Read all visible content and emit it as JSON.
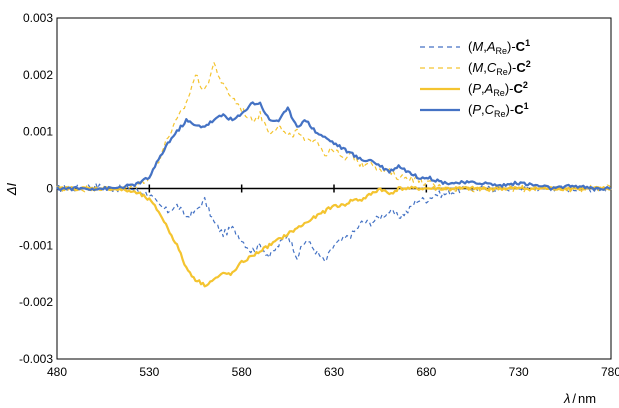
{
  "chart_data": {
    "type": "line",
    "xlabel": {
      "symbol": "λ",
      "unit": "nm"
    },
    "ylabel": {
      "symbol": "ΔI"
    },
    "xlim": [
      480,
      780
    ],
    "ylim": [
      -0.003,
      0.003
    ],
    "x_ticks": [
      "480",
      "530",
      "580",
      "630",
      "680",
      "730",
      "780"
    ],
    "y_ticks": [
      "0.003",
      "0.002",
      "0.001",
      "0",
      "-0.001",
      "-0.002",
      "-0.003"
    ],
    "zero_axis_ticks": [
      530,
      580,
      630,
      680
    ],
    "grid": false,
    "legend_position": "top-right",
    "series": [
      {
        "name": "(M,ARe)-C1",
        "label": {
          "open": "(",
          "italic1": "M",
          "comma": ",",
          "italic2": "A",
          "sub": "Re",
          "close": ")-",
          "bold": "C",
          "sup": "1"
        },
        "color": "#4472C4",
        "dash": "dashed",
        "width": 1.2,
        "x": [
          480,
          490,
          500,
          510,
          520,
          525,
          530,
          535,
          540,
          545,
          550,
          555,
          560,
          565,
          570,
          575,
          580,
          585,
          590,
          595,
          600,
          605,
          610,
          615,
          620,
          625,
          630,
          635,
          640,
          645,
          650,
          655,
          660,
          665,
          670,
          675,
          680,
          685,
          690,
          700,
          710,
          720,
          730,
          740,
          750,
          760,
          770,
          780
        ],
        "y": [
          0,
          0,
          5e-05,
          0,
          0,
          -5e-05,
          -0.0001,
          -0.0003,
          -0.0004,
          -0.0003,
          -0.0005,
          -0.0004,
          -0.0002,
          -0.0006,
          -0.0008,
          -0.0007,
          -0.0009,
          -0.0011,
          -0.001,
          -0.0012,
          -0.001,
          -0.0008,
          -0.0012,
          -0.0009,
          -0.0011,
          -0.0013,
          -0.001,
          -0.0009,
          -0.0008,
          -0.0006,
          -0.0006,
          -0.0005,
          -0.0004,
          -0.0005,
          -0.0004,
          -0.0002,
          -0.0002,
          -0.0001,
          -0.0001,
          0,
          0,
          0,
          0,
          0,
          0,
          0,
          0,
          0
        ]
      },
      {
        "name": "(M,CRe)-C2",
        "label": {
          "open": "(",
          "italic1": "M",
          "comma": ",",
          "italic2": "C",
          "sub": "Re",
          "close": ")-",
          "bold": "C",
          "sup": "2"
        },
        "color": "#F4C430",
        "dash": "dashed",
        "width": 1.2,
        "x": [
          480,
          490,
          500,
          510,
          520,
          525,
          530,
          535,
          540,
          545,
          550,
          555,
          560,
          565,
          570,
          575,
          580,
          585,
          590,
          595,
          600,
          605,
          610,
          615,
          620,
          625,
          630,
          635,
          640,
          645,
          650,
          655,
          660,
          665,
          670,
          680,
          690,
          700,
          710,
          720,
          730,
          740,
          750,
          760,
          770,
          780
        ],
        "y": [
          0,
          0,
          0,
          0,
          0,
          0.0001,
          0.0002,
          0.0005,
          0.0009,
          0.0012,
          0.0015,
          0.002,
          0.0017,
          0.0022,
          0.0018,
          0.0016,
          0.0014,
          0.0012,
          0.0013,
          0.001,
          0.0011,
          0.0009,
          0.001,
          0.0008,
          0.0009,
          0.0006,
          0.0007,
          0.0005,
          0.0006,
          0.0004,
          0.0005,
          0.0003,
          0.0003,
          0.0002,
          0.0002,
          0.0001,
          0,
          0,
          0,
          0,
          0,
          0,
          0,
          0,
          0,
          0
        ]
      },
      {
        "name": "(P,ARe)-C2",
        "label": {
          "open": "(",
          "italic1": "P",
          "comma": ",",
          "italic2": "A",
          "sub": "Re",
          "close": ")-",
          "bold": "C",
          "sup": "2"
        },
        "color": "#F4C430",
        "dash": "solid",
        "width": 2.2,
        "x": [
          480,
          490,
          500,
          510,
          520,
          525,
          530,
          535,
          540,
          545,
          550,
          555,
          560,
          565,
          570,
          575,
          580,
          585,
          590,
          595,
          600,
          605,
          610,
          615,
          620,
          625,
          630,
          635,
          640,
          645,
          650,
          655,
          660,
          665,
          670,
          675,
          680,
          690,
          700,
          710,
          720,
          730,
          740,
          750,
          760,
          770,
          780
        ],
        "y": [
          0,
          0,
          0,
          0,
          -5e-05,
          -0.0001,
          -0.0002,
          -0.0004,
          -0.0007,
          -0.001,
          -0.0014,
          -0.0016,
          -0.0017,
          -0.0016,
          -0.0015,
          -0.0015,
          -0.0013,
          -0.0012,
          -0.0011,
          -0.001,
          -0.0009,
          -0.0008,
          -0.0007,
          -0.0006,
          -0.0005,
          -0.0004,
          -0.0003,
          -0.0003,
          -0.0002,
          -0.0002,
          -0.0001,
          0,
          -0.0001,
          0,
          0,
          0,
          0,
          0,
          0,
          0,
          0,
          0,
          0,
          0,
          0,
          0,
          0
        ]
      },
      {
        "name": "(P,CRe)-C1",
        "label": {
          "open": "(",
          "italic1": "P",
          "comma": ",",
          "italic2": "C",
          "sub": "Re",
          "close": ")-",
          "bold": "C",
          "sup": "1"
        },
        "color": "#4472C4",
        "dash": "solid",
        "width": 2.2,
        "x": [
          480,
          490,
          500,
          510,
          520,
          525,
          530,
          535,
          540,
          545,
          550,
          555,
          560,
          565,
          570,
          575,
          580,
          585,
          590,
          595,
          600,
          605,
          610,
          615,
          620,
          625,
          630,
          635,
          640,
          645,
          650,
          655,
          660,
          665,
          670,
          675,
          680,
          690,
          700,
          710,
          720,
          730,
          740,
          750,
          760,
          770,
          780
        ],
        "y": [
          0,
          0,
          0,
          0,
          5e-05,
          0.0001,
          0.0002,
          0.0005,
          0.0008,
          0.001,
          0.0012,
          0.0011,
          0.0011,
          0.0012,
          0.0013,
          0.0012,
          0.0013,
          0.0015,
          0.0015,
          0.0012,
          0.0012,
          0.0014,
          0.0011,
          0.0012,
          0.001,
          0.0009,
          0.0008,
          0.0007,
          0.0006,
          0.0005,
          0.0005,
          0.0004,
          0.0003,
          0.0004,
          0.0003,
          0.0002,
          0.0002,
          0.0001,
          0.0001,
          0.0001,
          5e-05,
          0.0001,
          5e-05,
          0,
          5e-05,
          0,
          0
        ]
      }
    ]
  }
}
